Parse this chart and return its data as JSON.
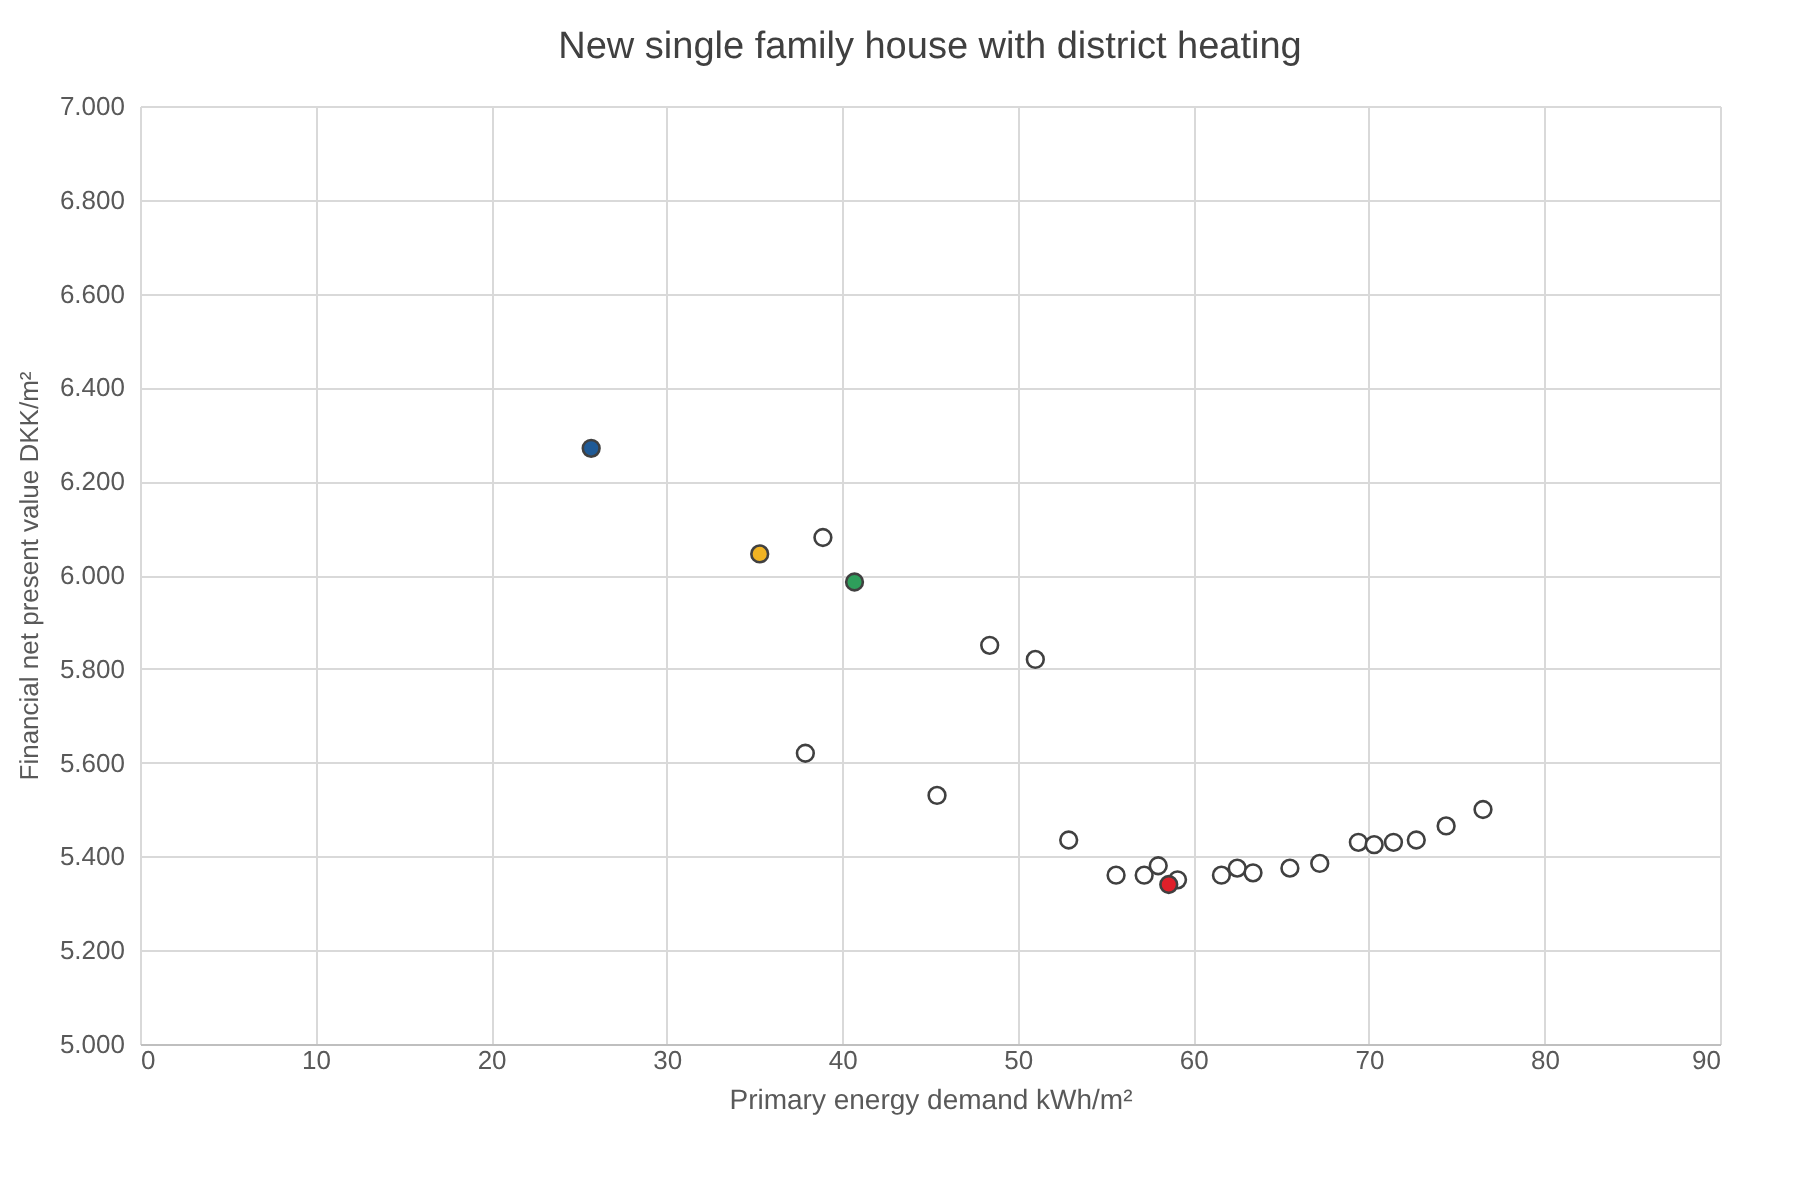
{
  "chart_data": {
    "type": "scatter",
    "title": "New single family house with district heating",
    "xlabel": "Primary energy demand kWh/m²",
    "ylabel": "Financial net present value DKK/m²",
    "xlim": [
      0,
      90
    ],
    "xticks": [
      0,
      10,
      20,
      30,
      40,
      50,
      60,
      70,
      80,
      90
    ],
    "ylim": [
      5000,
      7000
    ],
    "yticks": [
      {
        "value": 5000,
        "label": "5.000"
      },
      {
        "value": 5200,
        "label": "5.200"
      },
      {
        "value": 5400,
        "label": "5.400"
      },
      {
        "value": 5600,
        "label": "5.600"
      },
      {
        "value": 5800,
        "label": "5.800"
      },
      {
        "value": 6000,
        "label": "6.000"
      },
      {
        "value": 6200,
        "label": "6.200"
      },
      {
        "value": 6400,
        "label": "6.400"
      },
      {
        "value": 6600,
        "label": "6.600"
      },
      {
        "value": 6800,
        "label": "6.800"
      },
      {
        "value": 7000,
        "label": "7.000"
      }
    ],
    "grid": true,
    "marker": "circle",
    "series": [
      {
        "color": "#ffffff",
        "x": [
          38.9,
          48.4,
          51.0,
          37.9,
          45.4,
          52.9,
          55.6,
          57.2,
          58.0,
          59.1,
          61.6,
          62.5,
          63.4,
          65.5,
          67.2,
          69.4,
          70.3,
          71.4,
          72.7,
          74.4,
          76.5
        ],
        "values": [
          6080,
          5850,
          5820,
          5620,
          5530,
          5435,
          5360,
          5360,
          5380,
          5350,
          5360,
          5375,
          5365,
          5375,
          5385,
          5430,
          5425,
          5430,
          5435,
          5465,
          5500
        ]
      },
      {
        "color": "#1f5a96",
        "x": [
          25.7
        ],
        "values": [
          6270
        ]
      },
      {
        "color": "#f0b323",
        "x": [
          35.3
        ],
        "values": [
          6045
        ]
      },
      {
        "color": "#2e9e5b",
        "x": [
          40.7
        ],
        "values": [
          5985
        ]
      },
      {
        "color": "#e0202a",
        "x": [
          58.6
        ],
        "values": [
          5340
        ]
      }
    ]
  }
}
